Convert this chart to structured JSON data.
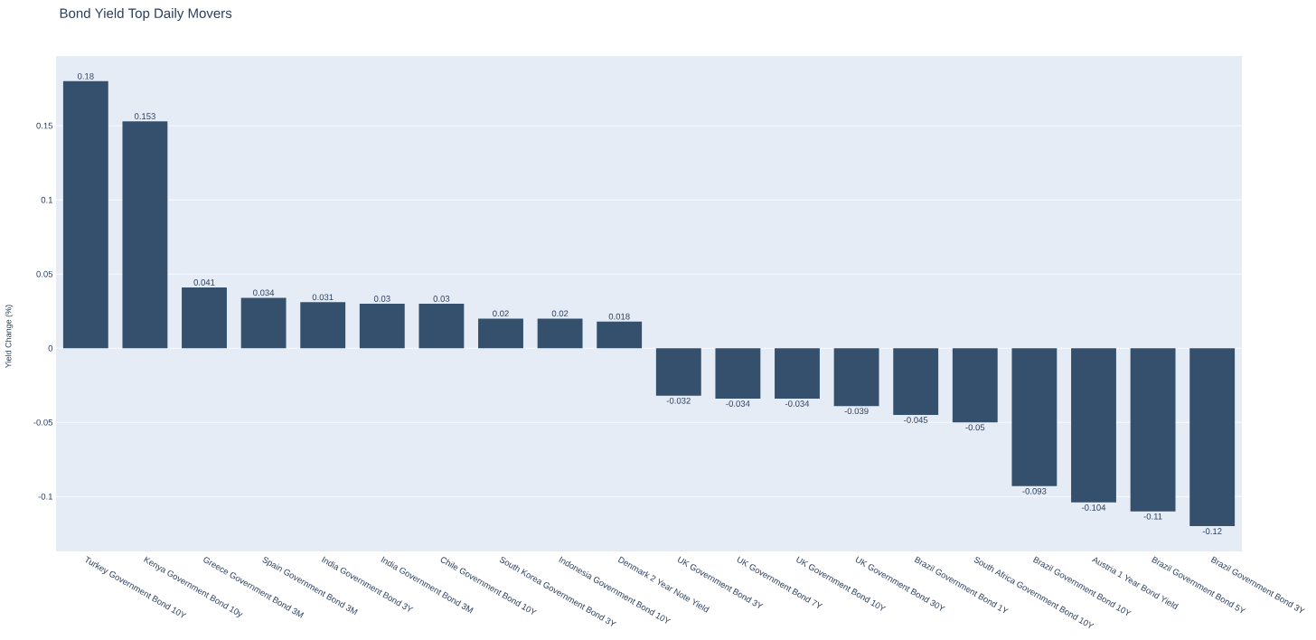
{
  "chart_data": {
    "type": "bar",
    "title": "Bond Yield Top Daily Movers",
    "ylabel": "Yield Change (%)",
    "categories": [
      "Turkey Government Bond 10Y",
      "Kenya Government Bond 10y",
      "Greece Government Bond 3M",
      "Spain Government Bond 3M",
      "India Government Bond 3Y",
      "India Government Bond 3M",
      "Chile Government Bond 10Y",
      "South Korea Government Bond 3Y",
      "Indonesia Government Bond 10Y",
      "Denmark 2 Year Note Yield",
      "UK Government Bond 3Y",
      "UK Government Bond 7Y",
      "UK Government Bond 10Y",
      "UK Government Bond 30Y",
      "Brazil Government Bond 1Y",
      "South Africa Government Bond 10Y",
      "Brazil Government Bond 10Y",
      "Austria 1 Year Bond Yield",
      "Brazil Government Bond 5Y",
      "Brazil Government Bond 3Y"
    ],
    "values": [
      0.18,
      0.153,
      0.041,
      0.034,
      0.031,
      0.03,
      0.03,
      0.02,
      0.02,
      0.018,
      -0.032,
      -0.034,
      -0.034,
      -0.039,
      -0.045,
      -0.05,
      -0.093,
      -0.104,
      -0.11,
      -0.12
    ],
    "color": "#34506c",
    "ylim": [
      -0.137,
      0.197
    ],
    "yticks": [
      -0.1,
      -0.05,
      0,
      0.05,
      0.1,
      0.15
    ],
    "grid": "y",
    "data_labels": true
  }
}
